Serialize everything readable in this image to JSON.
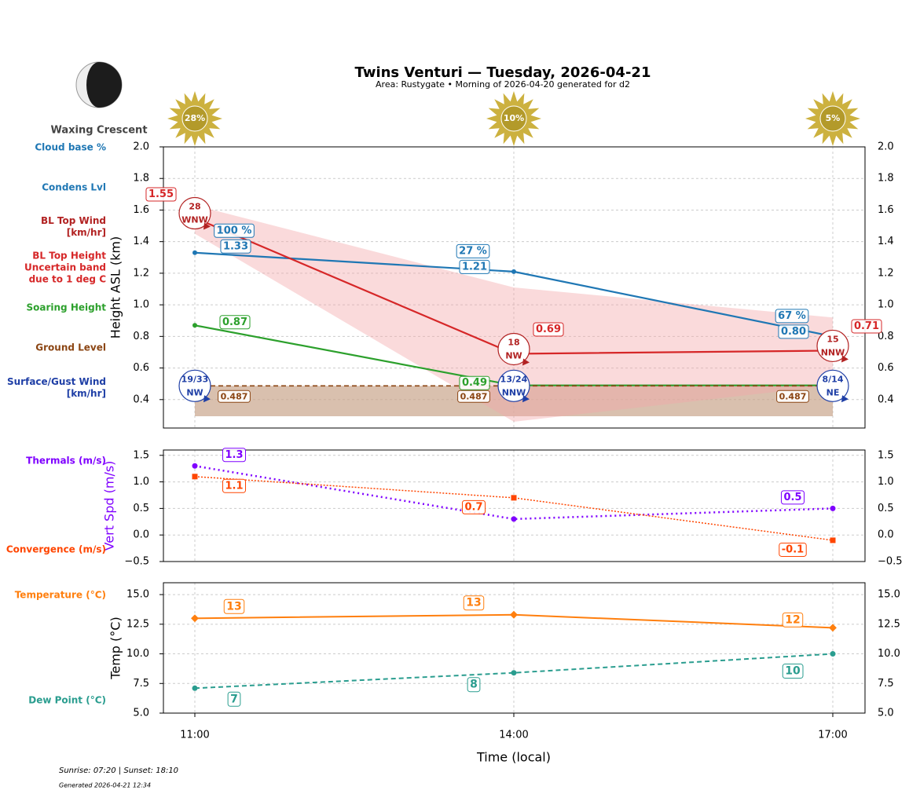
{
  "header": {
    "title": "Twins Venturi — Tuesday, 2026-04-21",
    "subtitle": "Area: Rustygate • Morning of 2026-04-20 generated for d2",
    "moon_phase": "Waxing Crescent"
  },
  "footer": {
    "sun_times": "Sunrise: 07:20 | Sunset: 18:10",
    "generated": "Generated 2026-04-21 12:34"
  },
  "chart_data": [
    {
      "type": "line",
      "ylabel": "Height ASL (km)",
      "ylim": [
        0.22,
        2.0
      ],
      "yticks": [
        0.4,
        0.6,
        0.8,
        {
          "value": 1,
          "label": "1.0"
        },
        1.2,
        1.4,
        1.6,
        1.8,
        {
          "value": 2,
          "label": "2.0"
        }
      ],
      "grid": true,
      "cloud_cover": {
        "values": [
          28,
          10,
          5
        ],
        "value_labels": [
          "28%",
          "10%",
          "5%"
        ]
      },
      "cloud_base": {
        "name": "Cloud base %",
        "values": [
          100,
          27,
          67
        ],
        "value_labels": [
          "100 %",
          "27 %",
          "67 %"
        ],
        "color": "#1f77b4"
      },
      "bl_wind": {
        "name": "BL Top Wind [km/hr]",
        "values": [
          28,
          18,
          15
        ],
        "directions": [
          "WNW",
          "NW",
          "NNW"
        ],
        "color": "#b22222"
      },
      "surface_wind": {
        "name": "Surface/Gust Wind [km/hr]",
        "values": [
          19,
          13,
          8
        ],
        "gust": [
          33,
          24,
          14
        ],
        "value_labels": [
          "19/33",
          "13/24",
          "8/14"
        ],
        "directions": [
          "NW",
          "NNW",
          "NE"
        ],
        "color": "#1f3fa6"
      },
      "series": [
        {
          "name": "Condens Lvl",
          "color": "#1f77b4",
          "values": [
            1.33,
            1.21,
            0.8
          ],
          "value_labels": [
            "1.33",
            "1.21",
            "0.80"
          ]
        },
        {
          "name": "BL Top Height Uncertain band due to 1 deg C",
          "color": "#d62728",
          "values": [
            1.55,
            0.69,
            0.71
          ],
          "band_upper": [
            1.63,
            1.11,
            0.92
          ],
          "band_lower": [
            1.45,
            0.26,
            0.49
          ]
        },
        {
          "name": "Soaring Height",
          "color": "#2ca02c",
          "values": [
            0.87,
            0.49,
            0.49
          ],
          "value_labels": [
            "0.87",
            "0.49",
            null
          ]
        },
        {
          "name": "Ground Level",
          "color": "#8b4513",
          "values": [
            0.487,
            0.487,
            0.487
          ]
        }
      ]
    },
    {
      "type": "line",
      "ylabel": "Vert Spd (m/s)",
      "ylim": [
        -0.5,
        1.6
      ],
      "yticks": [
        {
          "value": -0.5,
          "label": "−0.5"
        },
        {
          "value": 0,
          "label": "0.0"
        },
        0.5,
        {
          "value": 1,
          "label": "1.0"
        },
        1.5
      ],
      "grid": true,
      "series": [
        {
          "name": "Thermals (m/s)",
          "color": "#7f00ff",
          "values": [
            1.3,
            0.3,
            0.5
          ],
          "value_labels": [
            "1.3",
            null,
            "0.5"
          ]
        },
        {
          "name": "Convergence (m/s)",
          "color": "#ff4500",
          "values": [
            1.1,
            0.7,
            -0.1
          ]
        }
      ]
    },
    {
      "type": "line",
      "ylabel": "Temp (°C)",
      "xlabel": "Time (local)",
      "categories": [
        "11:00",
        "14:00",
        "17:00"
      ],
      "ylim": [
        5,
        16
      ],
      "yticks": [
        {
          "value": 5,
          "label": "5.0"
        },
        7.5,
        {
          "value": 10,
          "label": "10.0"
        },
        12.5,
        {
          "value": 15,
          "label": "15.0"
        }
      ],
      "grid": true,
      "series": [
        {
          "name": "Temperature (°C)",
          "color": "#ff7f0e",
          "values": [
            13,
            13.3,
            12.2
          ],
          "value_labels": [
            "13",
            "13",
            "12"
          ]
        },
        {
          "name": "Dew Point (°C)",
          "color": "#2a9d8f",
          "values": [
            7.1,
            8.4,
            10
          ],
          "value_labels": [
            "7",
            "8",
            "10"
          ]
        }
      ]
    }
  ]
}
